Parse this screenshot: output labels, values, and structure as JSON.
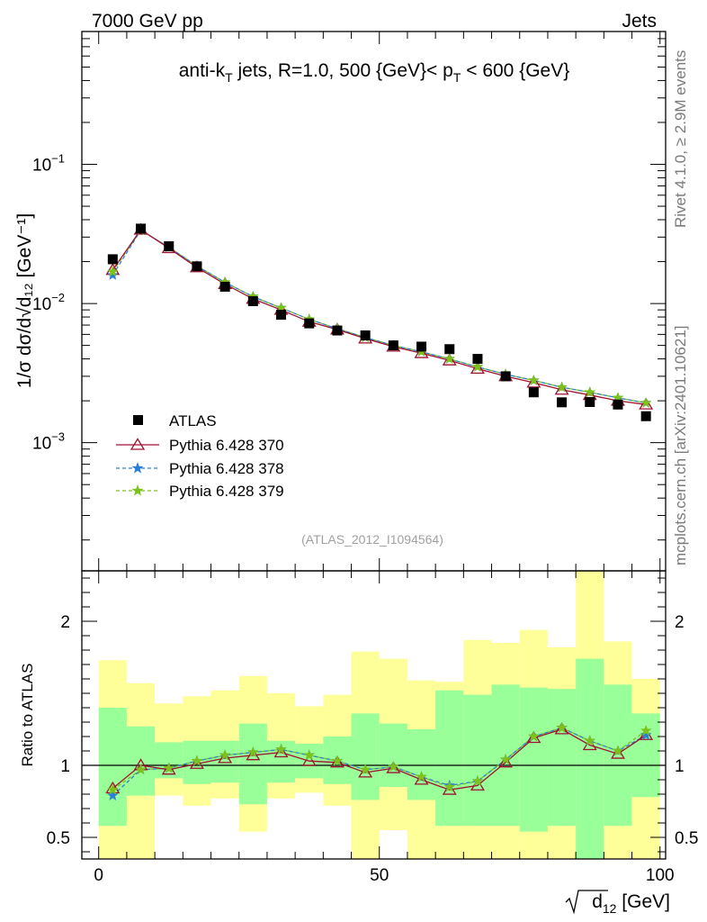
{
  "header": {
    "left": "7000 GeV pp",
    "right": "Jets",
    "analysis_id": "(ATLAS_2012_I1094564)",
    "side_rivet": "Rivet 4.1.0, ≥ 2.9M events",
    "side_mcplots": "mcplots.cern.ch [arXiv:2401.10621]"
  },
  "colors": {
    "atlas": "#000000",
    "p370": "#a01030",
    "p378": "#2a7fdb",
    "p379": "#7cc21a",
    "band_outer": "#ffff99",
    "band_inner": "#99ff99"
  },
  "chart_data": [
    {
      "type": "line",
      "panel": "main",
      "title_parts": {
        "pre": "anti-k",
        "sub1": "T",
        "mid": " jets, R=1.0, 500 {GeV}< p",
        "sub2": "T",
        "post": " < 600 {GeV}"
      },
      "ylabel": "1/σ dσ/d√d₁₂ [GeV⁻¹]",
      "yscale": "log",
      "ylim": [
        0.00012,
        0.9
      ],
      "xlim": [
        -3,
        101
      ],
      "ytick_labels": [
        {
          "base": "10",
          "exp": "−1",
          "value": 0.1
        },
        {
          "base": "10",
          "exp": "−2",
          "value": 0.01
        },
        {
          "base": "10",
          "exp": "−3",
          "value": 0.001
        }
      ],
      "x": [
        2.5,
        7.5,
        12.5,
        17.5,
        22.5,
        27.5,
        32.5,
        37.5,
        42.5,
        47.5,
        52.5,
        57.5,
        62.5,
        67.5,
        72.5,
        77.5,
        82.5,
        87.5,
        92.5,
        97.5
      ],
      "series": [
        {
          "name": "ATLAS",
          "marker": "square",
          "values": [
            0.0208,
            0.0345,
            0.0258,
            0.0185,
            0.0132,
            0.0104,
            0.0083,
            0.0072,
            0.0064,
            0.0059,
            0.005,
            0.0049,
            0.0047,
            0.004,
            0.003,
            0.0023,
            0.00195,
            0.00196,
            0.00188,
            0.00155
          ]
        },
        {
          "name": "Pythia 6.428 370",
          "marker": "triangle",
          "style": "solid",
          "values": [
            0.0174,
            0.0339,
            0.025,
            0.0182,
            0.0138,
            0.0108,
            0.009,
            0.0074,
            0.0065,
            0.0056,
            0.0049,
            0.0044,
            0.0039,
            0.0034,
            0.003,
            0.0027,
            0.0024,
            0.0022,
            0.002,
            0.00188
          ]
        },
        {
          "name": "Pythia 6.428 378",
          "marker": "star",
          "style": "dashed",
          "values": [
            0.016,
            0.0336,
            0.0254,
            0.0186,
            0.0142,
            0.0112,
            0.0093,
            0.0077,
            0.0066,
            0.0057,
            0.005,
            0.0045,
            0.004,
            0.0035,
            0.0031,
            0.0028,
            0.0025,
            0.0023,
            0.0021,
            0.00193
          ]
        },
        {
          "name": "Pythia 6.428 379",
          "marker": "star",
          "style": "dashed",
          "values": [
            0.0169,
            0.0336,
            0.0254,
            0.0186,
            0.0142,
            0.0112,
            0.0093,
            0.0077,
            0.0066,
            0.0057,
            0.005,
            0.0045,
            0.004,
            0.0035,
            0.0031,
            0.0028,
            0.0025,
            0.0023,
            0.0021,
            0.00193
          ]
        }
      ],
      "legend": {
        "placement": "lower-left",
        "entries": [
          "ATLAS",
          "Pythia 6.428 370",
          "Pythia 6.428 378",
          "Pythia 6.428 379"
        ]
      }
    },
    {
      "type": "line",
      "panel": "ratio",
      "ylabel": "Ratio to ATLAS",
      "xlabel_root": "d",
      "xlabel_sub": "12",
      "xlabel_unit": " [GeV]",
      "ylim": [
        0.35,
        2.35
      ],
      "xlim": [
        -3,
        101
      ],
      "xticks": [
        0,
        50,
        100
      ],
      "xtick_labels": [
        "0",
        "50",
        "100"
      ],
      "yticks": [
        0.5,
        1,
        2
      ],
      "ytick_labels": [
        "0.5",
        "1",
        "2"
      ],
      "reference_line": 1,
      "bin_edges": [
        0,
        5,
        10,
        15,
        20,
        25,
        30,
        35,
        40,
        45,
        50,
        55,
        60,
        65,
        70,
        75,
        80,
        85,
        90,
        95,
        100
      ],
      "band_outer_low": [
        0.35,
        0.35,
        0.79,
        0.72,
        0.77,
        0.54,
        0.77,
        0.81,
        0.72,
        0.35,
        0.55,
        0.35,
        0.35,
        0.35,
        0.35,
        0.35,
        0.35,
        0.35,
        0.35,
        0.35
      ],
      "band_outer_high": [
        1.73,
        1.57,
        1.43,
        1.48,
        1.52,
        1.62,
        1.5,
        1.41,
        1.49,
        1.79,
        1.74,
        1.59,
        1.58,
        1.87,
        1.85,
        1.94,
        1.82,
        2.35,
        1.86,
        1.6
      ],
      "band_inner_low": [
        0.58,
        0.79,
        0.91,
        0.87,
        0.88,
        0.73,
        0.88,
        0.91,
        0.87,
        0.76,
        0.85,
        0.76,
        0.58,
        0.58,
        0.58,
        0.54,
        0.58,
        0.35,
        0.58,
        0.78
      ],
      "band_inner_high": [
        1.4,
        1.27,
        1.16,
        1.17,
        1.17,
        1.29,
        1.17,
        1.15,
        1.2,
        1.36,
        1.29,
        1.25,
        1.52,
        1.49,
        1.56,
        1.54,
        1.53,
        1.74,
        1.56,
        1.36
      ],
      "series": [
        {
          "name": "Pythia 6.428 370",
          "values": [
            0.84,
            1.0,
            0.97,
            1.01,
            1.05,
            1.07,
            1.09,
            1.03,
            1.02,
            0.95,
            0.98,
            0.9,
            0.83,
            0.86,
            1.02,
            1.19,
            1.25,
            1.14,
            1.08,
            1.21
          ]
        },
        {
          "name": "Pythia 6.428 378",
          "values": [
            0.79,
            0.97,
            0.98,
            1.03,
            1.07,
            1.09,
            1.11,
            1.07,
            1.03,
            0.97,
            0.99,
            0.92,
            0.86,
            0.89,
            1.04,
            1.2,
            1.26,
            1.17,
            1.1,
            1.21
          ]
        },
        {
          "name": "Pythia 6.428 379",
          "values": [
            0.83,
            0.97,
            0.98,
            1.03,
            1.07,
            1.09,
            1.11,
            1.07,
            1.03,
            0.97,
            0.99,
            0.92,
            0.85,
            0.89,
            1.04,
            1.2,
            1.26,
            1.17,
            1.1,
            1.24
          ]
        }
      ]
    }
  ]
}
